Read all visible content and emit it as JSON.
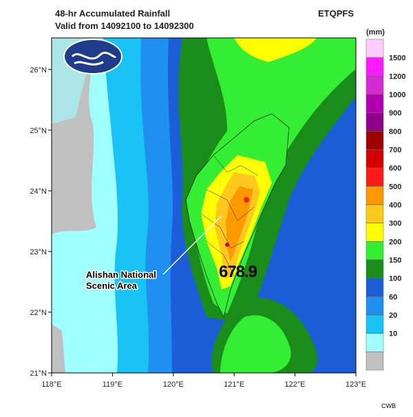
{
  "header": {
    "title": "48-hr Accumulated Rainfall",
    "subtitle": "Valid from 14092100 to 14092300",
    "product": "ETQPFS"
  },
  "map": {
    "lon_range": [
      118,
      123
    ],
    "lat_range": [
      21,
      26.52
    ],
    "lon_ticks": [
      {
        "value": 118,
        "label": "118°E"
      },
      {
        "value": 119,
        "label": "119°E"
      },
      {
        "value": 120,
        "label": "120°E"
      },
      {
        "value": 121,
        "label": "121°E"
      },
      {
        "value": 122,
        "label": "122°E"
      },
      {
        "value": 123,
        "label": "123°E"
      }
    ],
    "lat_ticks": [
      {
        "value": 21,
        "label": "21°N"
      },
      {
        "value": 22,
        "label": "22°N"
      },
      {
        "value": 23,
        "label": "23°N"
      },
      {
        "value": 24,
        "label": "24°N"
      },
      {
        "value": 25,
        "label": "25°N"
      },
      {
        "value": 26,
        "label": "26°N"
      }
    ],
    "annotation": [
      "Alishan National",
      "Scenic Area"
    ],
    "max_value": 678.9
  },
  "legend": {
    "unit": "(mm)",
    "levels": [
      1500,
      1200,
      1000,
      900,
      800,
      700,
      600,
      500,
      400,
      300,
      200,
      150,
      100,
      60,
      20,
      10
    ],
    "colors": [
      "#ffccff",
      "#ff1aff",
      "#d62ad6",
      "#b000b0",
      "#8c008c",
      "#a00000",
      "#d40000",
      "#ff1a1a",
      "#ff9900",
      "#ffc81e",
      "#ffff00",
      "#33ee33",
      "#1a8c1a",
      "#1c5ed8",
      "#1f8ff0",
      "#19c3f5",
      "#a0ffff",
      "#c0c0c0"
    ]
  },
  "credit": "CWB"
}
